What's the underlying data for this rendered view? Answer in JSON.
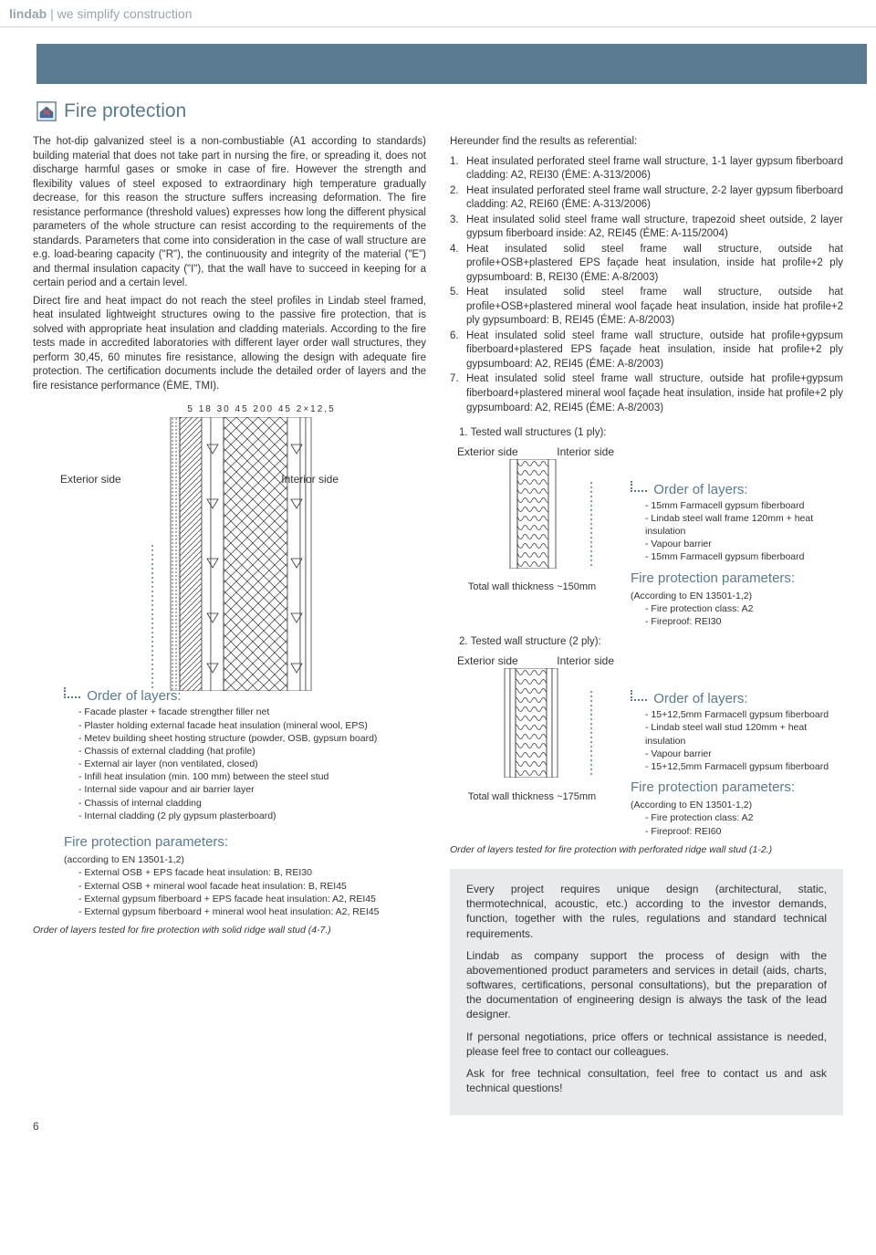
{
  "header": {
    "brand": "lindab",
    "tagline": "| we simplify construction"
  },
  "title": "Fire protection",
  "left": {
    "body_p1": "The hot-dip galvanized steel is a non-combustiable (A1 according to standards) building material that does not take part in nursing the fire, or spreading it, does not discharge harmful gases or smoke in case of fire. However the strength and flexibility values of steel exposed to extraordinary high temperature gradually decrease, for this reason the structure suffers increasing deformation. The fire resistance performance (threshold values) expresses how long the different physical parameters of the whole structure can resist according to the requirements of the standards. Parameters that come into consideration in the case of wall structure are e.g. load-bearing capacity (\"R\"), the continuousity and integrity of the material (\"E\") and thermal insulation capacity (\"I\"), that the wall have to succeed in keeping for a certain period and a certain level.",
    "body_p2": "Direct fire and heat impact do not reach the steel profiles in Lindab steel framed, heat insulated lightweight structures owing to the passive fire protection, that is solved with appropriate heat insulation and cladding materials. According to the fire tests made in accredited laboratories with different layer order wall structures, they perform 30,45, 60 minutes fire resistance, allowing the design with adequate fire protection. The certification documents include the detailed order of layers and the fire resistance performance (ÉME, TMI).",
    "dims": "5 18 30 45   200   45 2×12,5",
    "ext_label": "Exterior side",
    "int_label": "Interior side",
    "order_label": "Order of layers:",
    "order_items": [
      "Facade plaster + facade strengther filler net",
      "Plaster holding external facade heat insulation (mineral wool, EPS)",
      "Metev building sheet hosting structure (powder, OSB, gypsum board)",
      "Chassis of external cladding (hat profile)",
      "External air layer (non ventilated, closed)",
      "Infill heat insulation (min. 100 mm) between the steel stud",
      "Internal side vapour and air barrier layer",
      "Chassis of internal cladding",
      "Internal cladding (2 ply gypsum plasterboard)"
    ],
    "params_label": "Fire protection parameters:",
    "params_sub": "(according to EN 13501-1,2)",
    "params_items": [
      "External OSB + EPS facade heat insulation: B, REI30",
      "External OSB + mineral wool facade heat insulation: B, REI45",
      "External gypsum fiberboard + EPS facade heat insulation: A2, REI45",
      "External gypsum fiberboard + mineral wool heat insulation: A2, REI45"
    ],
    "tested_note": "Order of layers tested for fire protection with solid ridge wall stud (4-7.)"
  },
  "right": {
    "intro": "Hereunder find the results as referential:",
    "refs": [
      "Heat insulated perforated steel frame wall structure, 1-1 layer gypsum fiberboard cladding: A2, REI30 (ÉME: A-313/2006)",
      "Heat insulated perforated steel frame wall structure, 2-2 layer gypsum fiberboard cladding: A2, REI60 (ÉME: A-313/2006)",
      "Heat insulated solid steel frame wall structure, trapezoid sheet outside, 2 layer gypsum fiberboard inside: A2, REI45 (ÉME: A-115/2004)",
      "Heat insulated solid steel frame wall structure, outside hat profile+OSB+plastered EPS façade heat insulation, inside hat profile+2 ply gypsumboard: B, REI30 (ÉME: A-8/2003)",
      "Heat insulated solid steel frame wall structure, outside hat profile+OSB+plastered mineral wool façade heat insulation, inside hat profile+2 ply gypsumboard: B, REI45 (ÉME: A-8/2003)",
      "Heat insulated solid steel frame wall structure, outside hat profile+gypsum fiberboard+plastered EPS façade heat insulation, inside hat profile+2 ply gypsumboard: A2, REI45 (ÉME: A-8/2003)",
      "Heat insulated solid steel frame wall structure, outside hat profile+gypsum fiberboard+plastered mineral wool façade heat insulation, inside hat profile+2 ply gypsumboard: A2, REI45 (ÉME: A-8/2003)"
    ],
    "tested1_label": "1. Tested wall structures (1 ply):",
    "tested2_label": "2. Tested wall structure (2 ply):",
    "ext_label": "Exterior side",
    "int_label": "Interior side",
    "thk1": "Total wall thickness ~150mm",
    "thk2": "Total wall thickness ~175mm",
    "order_label": "Order of layers:",
    "order1_items": [
      "15mm Farmacell gypsum fiberboard",
      "Lindab steel wall frame 120mm + heat insulation",
      "Vapour barrier",
      "15mm Farmacell gypsum fiberboard"
    ],
    "order2_items": [
      "15+12,5mm Farmacell gypsum fiberboard",
      "Lindab steel wall stud 120mm + heat insulation",
      "Vapour barrier",
      "15+12,5mm Farmacell gypsum fiberboard"
    ],
    "params_label": "Fire protection parameters:",
    "params_sub": "(According to EN 13501-1,2)",
    "params1_items": [
      "Fire protection class: A2",
      "Fireproof: REI30"
    ],
    "params2_items": [
      "Fire protection class: A2",
      "Fireproof: REI60"
    ],
    "tested_note": "Order of layers tested for fire protection with perforated ridge wall stud (1-2.)",
    "box_p1": "Every project requires unique design (architectural, static, thermotechnical, acoustic, etc.) according to the investor demands, function, together with the rules, regulations and standard technical requirements.",
    "box_p2": "Lindab as company support the process of design with the abovementioned product parameters and services in detail (aids, charts, softwares, certifications, personal consultations), but the preparation of the documentation of engineering design is always the task of the lead designer.",
    "box_p3": "If personal negotiations, price offers or technical assistance is needed, please feel free to contact our colleagues.",
    "box_p4": "Ask for free technical consultation, feel free to contact us and ask technical questions!"
  },
  "page_number": "6",
  "colors": {
    "accent": "#5a7a8f",
    "header_text": "#95a5b0",
    "box_bg": "#e7ebee"
  }
}
